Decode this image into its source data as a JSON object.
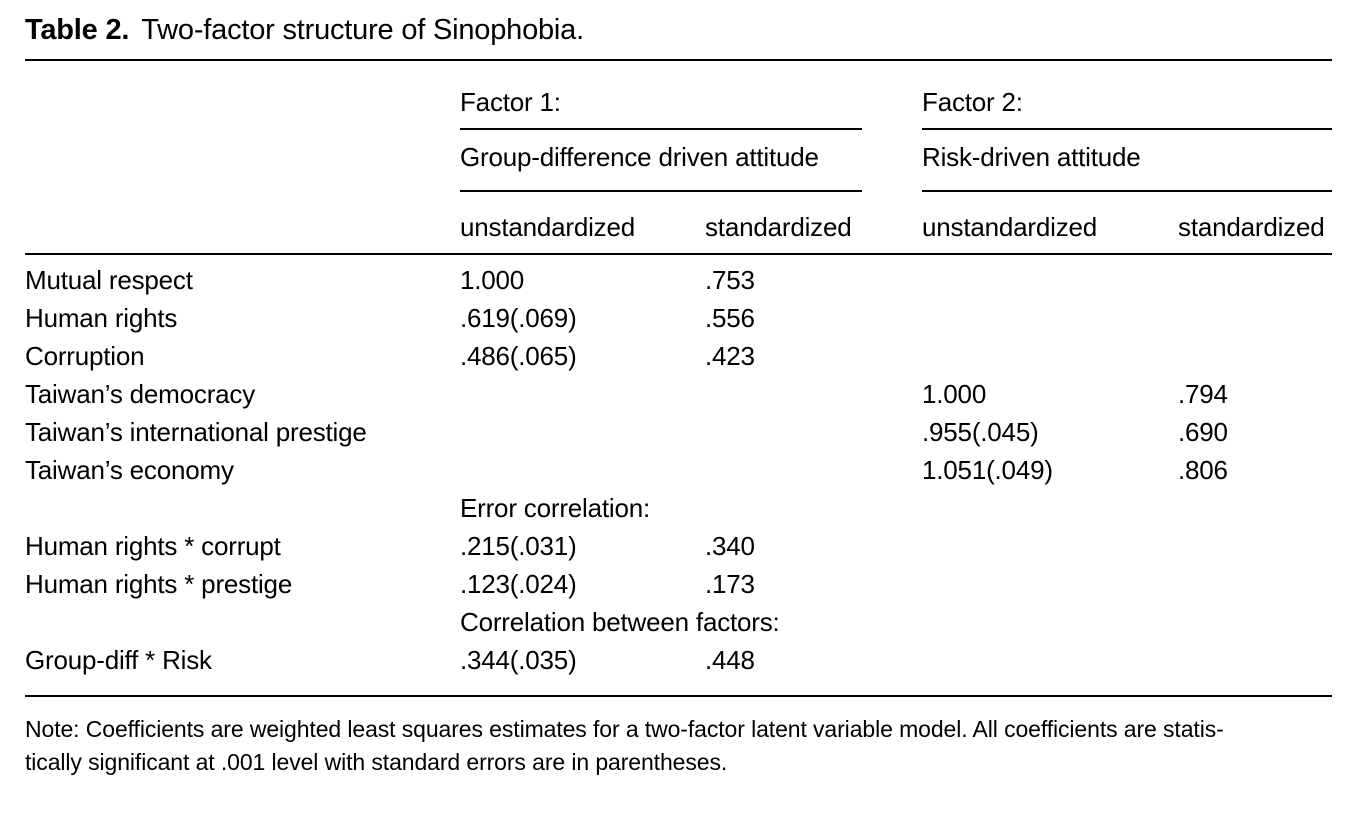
{
  "title": {
    "label": "Table 2.",
    "caption": "Two-factor structure of Sinophobia."
  },
  "table": {
    "factor1": {
      "name": "Factor 1:",
      "description": "Group-difference driven attitude"
    },
    "factor2": {
      "name": "Factor 2:",
      "description": "Risk-driven attitude"
    },
    "subheaders": {
      "unstandardized": "unstandardized",
      "standardized": "standardized"
    },
    "rows": [
      {
        "label": "Mutual respect",
        "f1u": "1.000",
        "f1s": ".753",
        "f2u": "",
        "f2s": ""
      },
      {
        "label": "Human rights",
        "f1u": ".619(.069)",
        "f1s": ".556",
        "f2u": "",
        "f2s": ""
      },
      {
        "label": "Corruption",
        "f1u": ".486(.065)",
        "f1s": ".423",
        "f2u": "",
        "f2s": ""
      },
      {
        "label": "Taiwan’s democracy",
        "f1u": "",
        "f1s": "",
        "f2u": "1.000",
        "f2s": ".794"
      },
      {
        "label": "Taiwan’s international prestige",
        "f1u": "",
        "f1s": "",
        "f2u": ".955(.045)",
        "f2s": ".690"
      },
      {
        "label": "Taiwan’s economy",
        "f1u": "",
        "f1s": "",
        "f2u": "1.051(.049)",
        "f2s": ".806"
      },
      {
        "section": "Error correlation:"
      },
      {
        "label": "Human rights * corrupt",
        "f1u": ".215(.031)",
        "f1s": ".340",
        "f2u": "",
        "f2s": ""
      },
      {
        "label": "Human rights * prestige",
        "f1u": ".123(.024)",
        "f1s": ".173",
        "f2u": "",
        "f2s": ""
      },
      {
        "section": "Correlation between factors:"
      },
      {
        "label": "Group-diff * Risk",
        "f1u": ".344(.035)",
        "f1s": ".448",
        "f2u": "",
        "f2s": ""
      }
    ]
  },
  "note": [
    "Note: Coefficients are weighted least squares estimates for a two-factor latent variable model. All coefficients are statis-",
    "tically significant at .001 level with standard errors are in parentheses."
  ]
}
